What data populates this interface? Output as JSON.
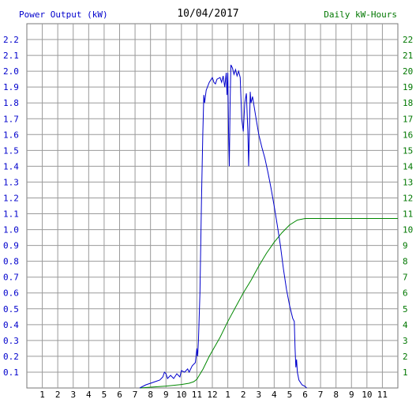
{
  "header": {
    "left_label": "Power Output (kW)",
    "date": "10/04/2017",
    "right_label": "Daily kW-Hours"
  },
  "chart_data": {
    "type": "line",
    "title": "10/04/2017",
    "ylabel": "Power Output (kW)",
    "y2label": "Daily kW-Hours",
    "xlabel": "",
    "grid": true,
    "x_ticks": [
      "1",
      "2",
      "3",
      "4",
      "5",
      "6",
      "7",
      "8",
      "9",
      "10",
      "11",
      "12",
      "1",
      "2",
      "3",
      "4",
      "5",
      "6",
      "7",
      "8",
      "9",
      "10",
      "11"
    ],
    "x_range_hours": [
      0,
      24
    ],
    "y_ticks": [
      "0.1",
      "0.2",
      "0.3",
      "0.4",
      "0.5",
      "0.6",
      "0.7",
      "0.8",
      "0.9",
      "1.0",
      "1.1",
      "1.2",
      "1.3",
      "1.4",
      "1.5",
      "1.6",
      "1.7",
      "1.8",
      "1.9",
      "2.0",
      "2.1",
      "2.2"
    ],
    "ylim": [
      0,
      2.3
    ],
    "y2_ticks": [
      "1",
      "2",
      "3",
      "4",
      "5",
      "6",
      "7",
      "8",
      "9",
      "10",
      "11",
      "12",
      "13",
      "14",
      "15",
      "16",
      "17",
      "18",
      "19",
      "20",
      "21",
      "22"
    ],
    "y2lim": [
      0,
      23
    ],
    "colors": {
      "power": "#0000cc",
      "energy": "#008800",
      "grid": "#9a9a9a",
      "left_axis": "#0000cc",
      "right_axis": "#007700"
    },
    "series": [
      {
        "key": "power",
        "axis": "left",
        "points": [
          [
            7.3,
            0
          ],
          [
            7.7,
            0.02
          ],
          [
            8.0,
            0.03
          ],
          [
            8.3,
            0.04
          ],
          [
            8.6,
            0.05
          ],
          [
            8.8,
            0.07
          ],
          [
            8.9,
            0.1
          ],
          [
            9.0,
            0.09
          ],
          [
            9.1,
            0.06
          ],
          [
            9.3,
            0.08
          ],
          [
            9.5,
            0.06
          ],
          [
            9.7,
            0.09
          ],
          [
            9.9,
            0.07
          ],
          [
            10.0,
            0.11
          ],
          [
            10.2,
            0.1
          ],
          [
            10.4,
            0.12
          ],
          [
            10.5,
            0.1
          ],
          [
            10.7,
            0.14
          ],
          [
            10.9,
            0.16
          ],
          [
            11.0,
            0.25
          ],
          [
            11.05,
            0.2
          ],
          [
            11.1,
            0.3
          ],
          [
            11.2,
            0.6
          ],
          [
            11.3,
            1.2
          ],
          [
            11.38,
            1.6
          ],
          [
            11.45,
            1.85
          ],
          [
            11.5,
            1.8
          ],
          [
            11.6,
            1.88
          ],
          [
            11.8,
            1.93
          ],
          [
            12.0,
            1.96
          ],
          [
            12.1,
            1.93
          ],
          [
            12.2,
            1.92
          ],
          [
            12.3,
            1.95
          ],
          [
            12.5,
            1.96
          ],
          [
            12.6,
            1.93
          ],
          [
            12.7,
            1.97
          ],
          [
            12.8,
            1.9
          ],
          [
            12.9,
            1.99
          ],
          [
            12.95,
            1.85
          ],
          [
            13.0,
            1.99
          ],
          [
            13.05,
            1.6
          ],
          [
            13.1,
            1.4
          ],
          [
            13.15,
            1.8
          ],
          [
            13.2,
            2.04
          ],
          [
            13.3,
            2.02
          ],
          [
            13.4,
            1.98
          ],
          [
            13.5,
            2.01
          ],
          [
            13.6,
            1.97
          ],
          [
            13.7,
            2.0
          ],
          [
            13.8,
            1.96
          ],
          [
            13.9,
            1.7
          ],
          [
            14.0,
            1.62
          ],
          [
            14.1,
            1.8
          ],
          [
            14.2,
            1.86
          ],
          [
            14.3,
            1.62
          ],
          [
            14.35,
            1.4
          ],
          [
            14.45,
            1.87
          ],
          [
            14.5,
            1.8
          ],
          [
            14.6,
            1.84
          ],
          [
            14.8,
            1.72
          ],
          [
            15.0,
            1.6
          ],
          [
            15.2,
            1.52
          ],
          [
            15.4,
            1.45
          ],
          [
            15.6,
            1.36
          ],
          [
            15.8,
            1.26
          ],
          [
            16.0,
            1.15
          ],
          [
            16.2,
            1.03
          ],
          [
            16.4,
            0.9
          ],
          [
            16.6,
            0.75
          ],
          [
            16.8,
            0.62
          ],
          [
            17.0,
            0.52
          ],
          [
            17.2,
            0.44
          ],
          [
            17.3,
            0.42
          ],
          [
            17.35,
            0.25
          ],
          [
            17.4,
            0.13
          ],
          [
            17.45,
            0.18
          ],
          [
            17.5,
            0.1
          ],
          [
            17.6,
            0.05
          ],
          [
            17.8,
            0.02
          ],
          [
            18.0,
            0.01
          ],
          [
            18.1,
            0.0
          ]
        ]
      },
      {
        "key": "energy",
        "axis": "right",
        "points": [
          [
            7.3,
            0
          ],
          [
            8.0,
            0.05
          ],
          [
            9.0,
            0.12
          ],
          [
            10.0,
            0.22
          ],
          [
            10.5,
            0.3
          ],
          [
            10.8,
            0.4
          ],
          [
            11.0,
            0.55
          ],
          [
            11.4,
            1.2
          ],
          [
            11.8,
            2.0
          ],
          [
            12.5,
            3.2
          ],
          [
            13.0,
            4.2
          ],
          [
            13.5,
            5.1
          ],
          [
            14.0,
            6.0
          ],
          [
            14.5,
            6.8
          ],
          [
            15.0,
            7.7
          ],
          [
            15.5,
            8.5
          ],
          [
            16.0,
            9.2
          ],
          [
            16.5,
            9.8
          ],
          [
            17.0,
            10.3
          ],
          [
            17.5,
            10.6
          ],
          [
            18.0,
            10.7
          ],
          [
            24.0,
            10.7
          ]
        ]
      }
    ]
  }
}
